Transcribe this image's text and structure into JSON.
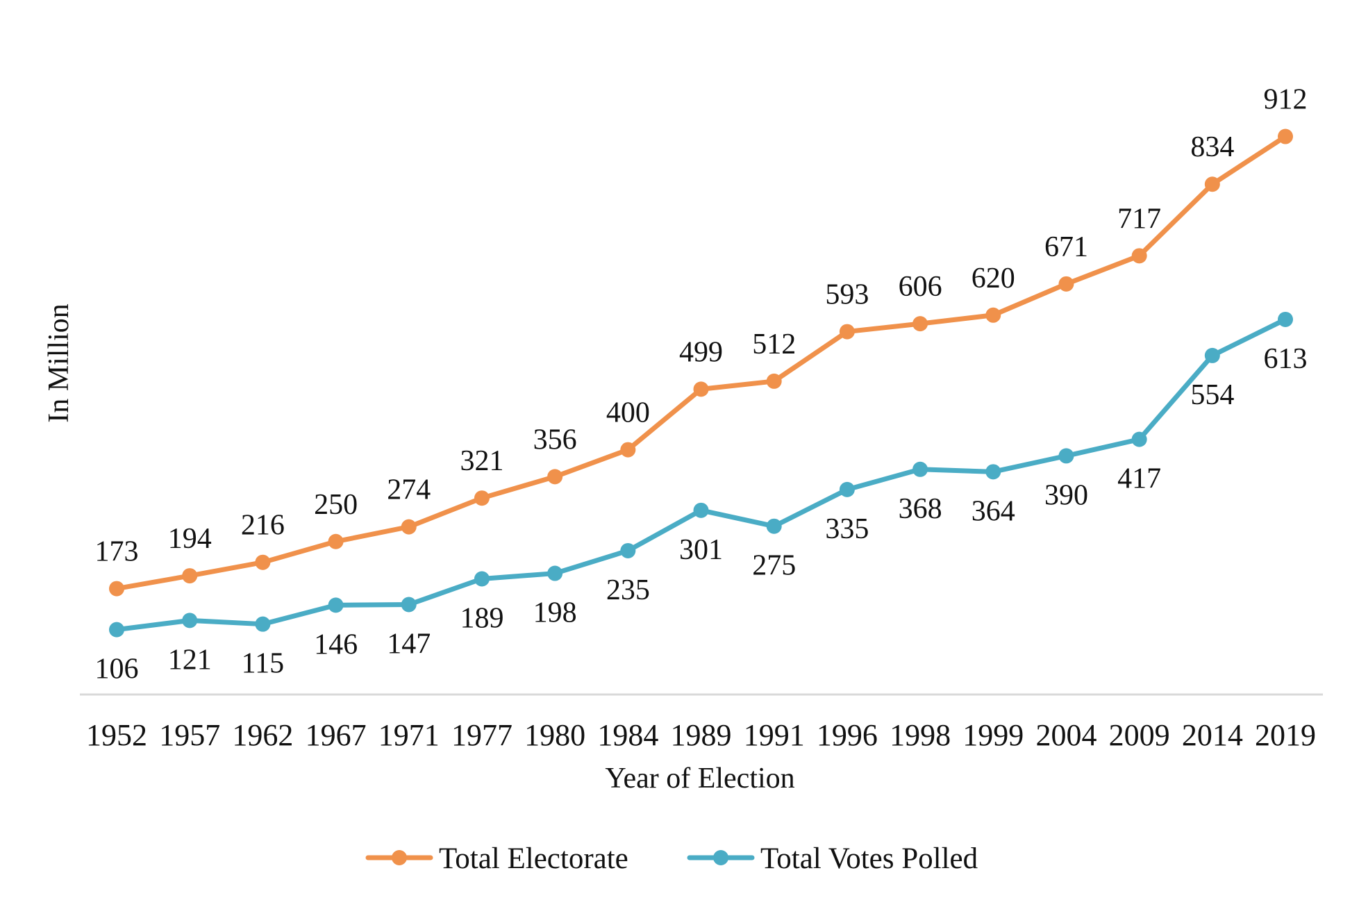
{
  "chart_data": {
    "type": "line",
    "xlabel": "Year of Election",
    "ylabel": "In Million",
    "categories": [
      "1952",
      "1957",
      "1962",
      "1967",
      "1971",
      "1977",
      "1980",
      "1984",
      "1989",
      "1991",
      "1996",
      "1998",
      "1999",
      "2004",
      "2009",
      "2014",
      "2019"
    ],
    "series": [
      {
        "name": "Total Electorate",
        "color": "#F0914B",
        "values": [
          173,
          194,
          216,
          250,
          274,
          321,
          356,
          400,
          499,
          512,
          593,
          606,
          620,
          671,
          717,
          834,
          912
        ],
        "label_position": "above"
      },
      {
        "name": "Total Votes Polled",
        "color": "#4AACC5",
        "values": [
          106,
          121,
          115,
          146,
          147,
          189,
          198,
          235,
          301,
          275,
          335,
          368,
          364,
          390,
          417,
          554,
          613
        ],
        "label_position": "below"
      }
    ],
    "ylim": [
      0,
      1000
    ],
    "grid": false,
    "legend": "bottom-center",
    "axis_color": "#D9D9D9"
  }
}
